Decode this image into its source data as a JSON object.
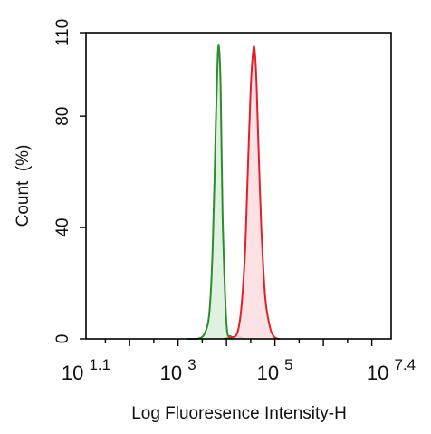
{
  "chart_data": {
    "type": "area",
    "xlabel": "Log Fluoresence Intensity-H",
    "ylabel": "Count  (%)",
    "xscale": "log",
    "xlim_log10": [
      1.1,
      7.4
    ],
    "ylim": [
      0,
      110
    ],
    "grid": false,
    "legend": "none",
    "x_tick_labels": [
      {
        "log10": 1.1,
        "base": "10",
        "exp": "1.1"
      },
      {
        "log10": 3,
        "base": "10",
        "exp": "3"
      },
      {
        "log10": 5,
        "base": "10",
        "exp": "5"
      },
      {
        "log10": 7.4,
        "base": "10",
        "exp": "7.4"
      }
    ],
    "y_ticks": [
      0,
      40,
      80,
      110
    ],
    "y_tick_labels": [
      "0",
      "40",
      "80",
      "110"
    ],
    "series": [
      {
        "color": "#2e8b2e",
        "fill": "#d9eed9",
        "x_log10": [
          3.2,
          3.4,
          3.55,
          3.65,
          3.72,
          3.78,
          3.82,
          3.85,
          3.88,
          3.92,
          3.98,
          4.02,
          4.08,
          4.15,
          4.22,
          4.3,
          4.38
        ],
        "y": [
          0,
          0,
          2,
          10,
          35,
          78,
          102,
          104,
          90,
          45,
          12,
          2,
          1,
          0.5,
          1,
          0.5,
          0
        ]
      },
      {
        "color": "#e0202a",
        "fill": "#fbdde0",
        "x_log10": [
          3.95,
          4.1,
          4.22,
          4.3,
          4.38,
          4.44,
          4.5,
          4.55,
          4.58,
          4.62,
          4.66,
          4.72,
          4.8,
          4.9,
          5.0,
          5.1
        ],
        "y": [
          0,
          0.5,
          2,
          10,
          30,
          60,
          90,
          103,
          104,
          92,
          70,
          40,
          15,
          4,
          0.5,
          0
        ]
      }
    ]
  }
}
